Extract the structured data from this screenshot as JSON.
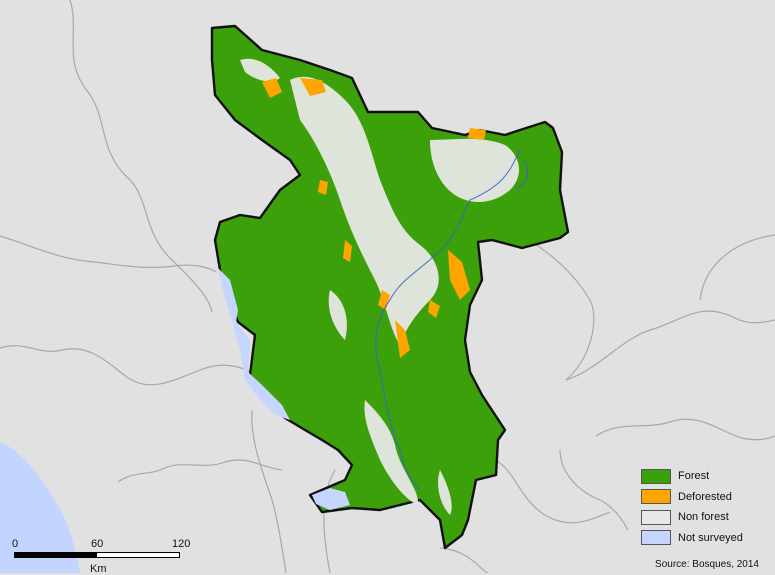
{
  "legend": {
    "items": [
      {
        "label": "Forest",
        "color": "#3ca00a"
      },
      {
        "label": "Deforested",
        "color": "#ffa500"
      },
      {
        "label": "Non forest",
        "color": "#e8e8e6"
      },
      {
        "label": "Not surveyed",
        "color": "#c5d5ff"
      }
    ]
  },
  "scalebar": {
    "ticks": [
      "0",
      "60",
      "120"
    ],
    "unit": "Km"
  },
  "source": "Source: Bosques, 2014",
  "colors": {
    "background": "#e1e1e1",
    "boundary": "#111111",
    "admin_lines": "#a8a8a8",
    "ocean": "#c3d4ff",
    "river": "#3b5fd4"
  }
}
